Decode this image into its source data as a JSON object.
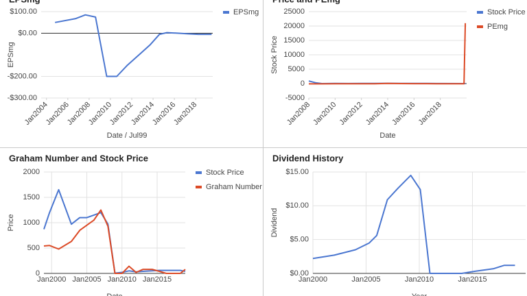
{
  "chart_data": [
    {
      "type": "line",
      "title": "EPSmg",
      "x_label": "Date / Jul99",
      "y_label": "EPSmg",
      "grid": true,
      "x_grid": false,
      "legend": "right",
      "rotate_x_labels": true,
      "xlim": [
        2003.5,
        2019.6
      ],
      "ylim": [
        -300,
        100
      ],
      "xticks": [
        {
          "value": 2004,
          "label": "Jan2004"
        },
        {
          "value": 2006,
          "label": "Jan2006"
        },
        {
          "value": 2008,
          "label": "Jan2008"
        },
        {
          "value": 2010,
          "label": "Jan2010"
        },
        {
          "value": 2012,
          "label": "Jan2012"
        },
        {
          "value": 2014,
          "label": "Jan2014"
        },
        {
          "value": 2016,
          "label": "Jan2016"
        },
        {
          "value": 2018,
          "label": "Jan2018"
        }
      ],
      "yticks": [
        {
          "value": 100,
          "label": "$100.00"
        },
        {
          "value": 0,
          "label": "$0.00"
        },
        {
          "value": -200,
          "label": "-$200.00"
        },
        {
          "value": -300,
          "label": "-$300.00"
        }
      ],
      "x": [
        2004.8,
        2006.75,
        2007.65,
        2008.6,
        2009.65,
        2010.6,
        2011.55,
        2012.8,
        2013.7,
        2014.6,
        2015.3,
        2016.4,
        2017.3,
        2018.25,
        2019.5
      ],
      "series": [
        {
          "name": "EPSmg",
          "color": "#4a76d0",
          "values": [
            50,
            68,
            85,
            75,
            -200,
            -200,
            -150,
            -95,
            -55,
            -5,
            3,
            0,
            -3,
            -5,
            -5
          ]
        }
      ]
    },
    {
      "type": "line",
      "title": "Price and PEmg",
      "x_label": "Date",
      "y_label": "Stock Price",
      "grid": true,
      "x_grid": false,
      "legend": "right",
      "rotate_x_labels": true,
      "xlim": [
        2008,
        2020
      ],
      "ylim": [
        -5000,
        25000
      ],
      "xticks": [
        {
          "value": 2008,
          "label": "Jan2008"
        },
        {
          "value": 2010,
          "label": "Jan2010"
        },
        {
          "value": 2012,
          "label": "Jan2012"
        },
        {
          "value": 2014,
          "label": "Jan2014"
        },
        {
          "value": 2016,
          "label": "Jan2016"
        },
        {
          "value": 2018,
          "label": "Jan2018"
        }
      ],
      "yticks": [
        -5000,
        0,
        5000,
        10000,
        15000,
        20000,
        25000
      ],
      "x": [
        2008,
        2008.5,
        2009,
        2010,
        2011,
        2012,
        2013,
        2014,
        2015,
        2016,
        2017,
        2018,
        2019.8,
        2019.9
      ],
      "series": [
        {
          "name": "Stock Price",
          "color": "#4a76d0",
          "values": [
            900,
            300,
            0,
            50,
            30,
            40,
            40,
            100,
            50,
            60,
            40,
            20,
            10,
            10
          ]
        },
        {
          "name": "PEmg",
          "color": "#dc4a26",
          "values": [
            -100,
            -100,
            -100,
            -50,
            -80,
            -80,
            -80,
            80,
            0,
            -30,
            -30,
            -80,
            -80,
            21000
          ]
        }
      ]
    },
    {
      "type": "line",
      "title": "Graham Number and Stock Price",
      "x_label": "Date",
      "y_label": "Price",
      "grid": true,
      "x_grid": true,
      "legend": "right",
      "rotate_x_labels": false,
      "xlim": [
        1998.9,
        2019
      ],
      "ylim": [
        0,
        2000
      ],
      "xticks": [
        {
          "value": 2000,
          "label": "Jan2000"
        },
        {
          "value": 2005,
          "label": "Jan2005"
        },
        {
          "value": 2010,
          "label": "Jan2010"
        },
        {
          "value": 2015,
          "label": "Jan2015"
        }
      ],
      "yticks": [
        0,
        500,
        1000,
        1500,
        2000
      ],
      "x": [
        1998.9,
        1999.7,
        2001,
        2002.8,
        2004,
        2005,
        2006,
        2007,
        2008,
        2009,
        2010,
        2011,
        2012,
        2013,
        2014.3,
        2015.3,
        2016.3,
        2018.3,
        2019
      ],
      "series": [
        {
          "name": "Stock Price",
          "color": "#4a76d0",
          "values": [
            870,
            1200,
            1650,
            970,
            1100,
            1100,
            1150,
            1200,
            970,
            5,
            20,
            50,
            30,
            40,
            50,
            60,
            60,
            60,
            40
          ]
        },
        {
          "name": "Graham Number",
          "color": "#dc4a26",
          "values": [
            540,
            550,
            480,
            630,
            850,
            950,
            1050,
            1250,
            930,
            0,
            0,
            140,
            20,
            80,
            80,
            40,
            0,
            0,
            80
          ]
        }
      ]
    },
    {
      "type": "line",
      "title": "Dividend History",
      "x_label": "Year",
      "y_label": "Dividend",
      "grid": true,
      "x_grid": true,
      "legend": "none",
      "rotate_x_labels": false,
      "xlim": [
        2000,
        2020
      ],
      "ylim": [
        0,
        15
      ],
      "xticks": [
        {
          "value": 2000,
          "label": "Jan2000"
        },
        {
          "value": 2005,
          "label": "Jan2005"
        },
        {
          "value": 2010,
          "label": "Jan2010"
        },
        {
          "value": 2015,
          "label": "Jan2015"
        }
      ],
      "yticks": [
        {
          "value": 0,
          "label": "$0.00"
        },
        {
          "value": 5,
          "label": "$5.00"
        },
        {
          "value": 10,
          "label": "$10.00"
        },
        {
          "value": 15,
          "label": "$15.00"
        }
      ],
      "x": [
        2000,
        2002,
        2004,
        2005.3,
        2006,
        2007,
        2008,
        2009.2,
        2010.1,
        2011,
        2012.6,
        2014,
        2015.2,
        2017,
        2018,
        2019
      ],
      "series": [
        {
          "name": "Dividend",
          "color": "#4a76d0",
          "values": [
            2.2,
            2.7,
            3.5,
            4.5,
            5.6,
            10.9,
            12.6,
            14.5,
            12.4,
            0,
            0,
            0,
            0.3,
            0.7,
            1.2,
            1.2
          ]
        }
      ]
    }
  ]
}
